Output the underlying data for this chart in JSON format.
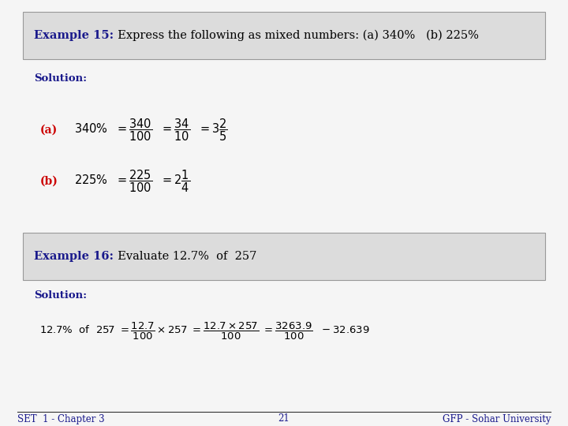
{
  "page_bg": "#f5f5f5",
  "box1_bg": "#dcdcdc",
  "box2_bg": "#dcdcdc",
  "box_edge": "#999999",
  "dark_blue": "#1a1a8c",
  "red_color": "#cc0000",
  "text_color": "#000000",
  "footer_color": "#1a1a8c",
  "box1_bold": "Example 15:",
  "box1_rest": "  Express the following as mixed numbers: (a) 340%   (b) 225%",
  "box2_bold": "Example 16:",
  "box2_rest": "  Evaluate 12.7%  of  257",
  "sol1_label": "Solution:",
  "sol2_label": "Solution:",
  "part_a": "(a)",
  "part_b": "(b)",
  "footer_left": "SET  1 - Chapter 3",
  "footer_center": "21",
  "footer_right": "GFP - Sohar University"
}
